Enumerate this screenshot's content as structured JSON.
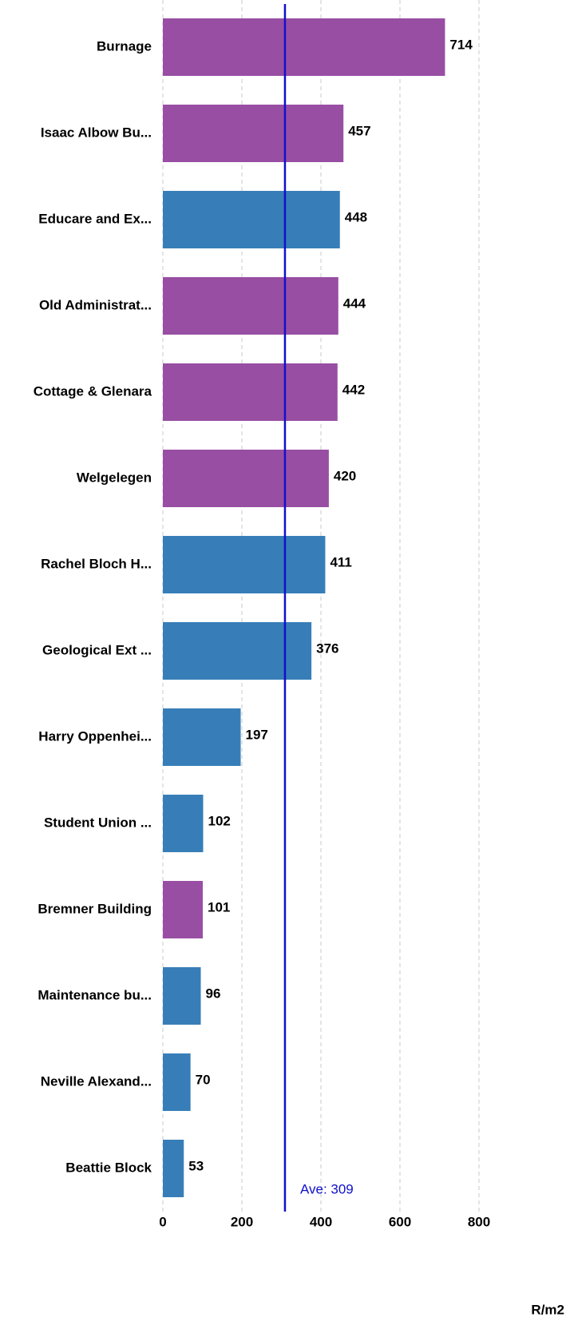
{
  "chart_data": {
    "type": "bar",
    "orientation": "horizontal",
    "categories": [
      "Burnage",
      "Isaac Albow Bu...",
      "Educare and Ex...",
      "Old Administrat...",
      "Cottage & Glenara",
      "Welgelegen",
      "Rachel Bloch H...",
      "Geological Ext ...",
      "Harry Oppenhei...",
      "Student Union ...",
      "Bremner Building",
      "Maintenance bu...",
      "Neville Alexand...",
      "Beattie Block"
    ],
    "values": [
      714,
      457,
      448,
      444,
      442,
      420,
      411,
      376,
      197,
      102,
      101,
      96,
      70,
      53
    ],
    "colors": [
      "#984ea3",
      "#984ea3",
      "#377eb8",
      "#984ea3",
      "#984ea3",
      "#984ea3",
      "#377eb8",
      "#377eb8",
      "#377eb8",
      "#377eb8",
      "#984ea3",
      "#377eb8",
      "#377eb8",
      "#377eb8"
    ],
    "xlim": [
      0,
      800
    ],
    "xticks": [
      0,
      200,
      400,
      600,
      800
    ],
    "grid": true,
    "xlabel": "R/m2",
    "average": {
      "value": 309,
      "label": "Ave: 309",
      "color": "#1010cc"
    }
  }
}
